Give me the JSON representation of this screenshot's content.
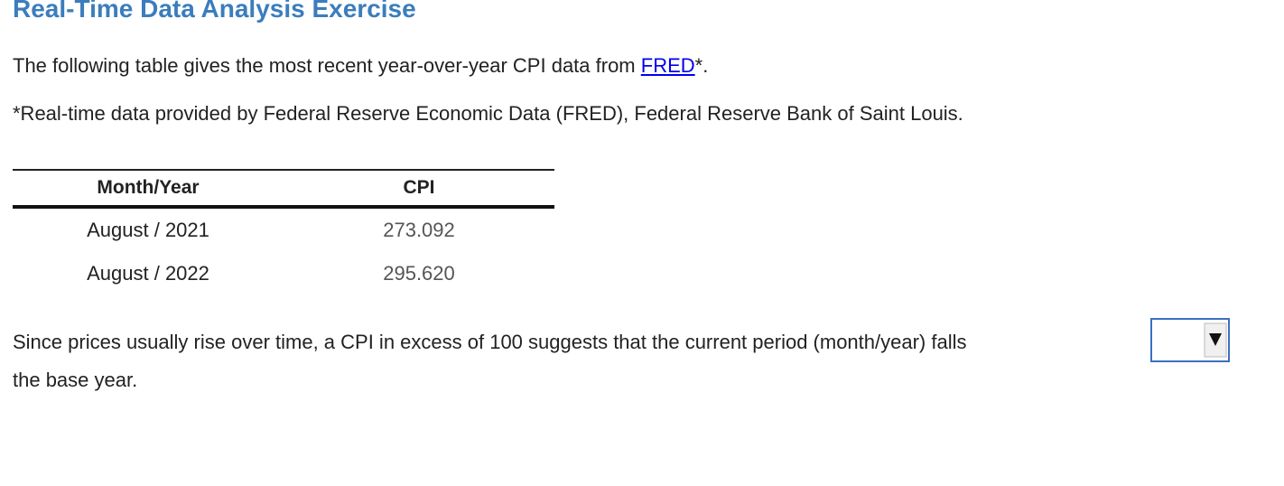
{
  "header": {
    "title": "Real-Time Data Analysis Exercise"
  },
  "intro": {
    "before_link": "The following table gives the most recent year-over-year CPI data from ",
    "link": "FRED",
    "after_link": "*."
  },
  "footnote": "*Real-time data provided by Federal Reserve Economic Data (FRED), Federal Reserve Bank of Saint Louis.",
  "table": {
    "columns": [
      "Month/Year",
      "CPI"
    ],
    "rows": [
      [
        "August / 2021",
        "273.092"
      ],
      [
        "August / 2022",
        "295.620"
      ]
    ]
  },
  "question": {
    "before_dropdown": "Since prices usually rise over time, a CPI in excess of 100 suggests that the current period (month/year) falls",
    "after_dropdown": "the base year."
  }
}
